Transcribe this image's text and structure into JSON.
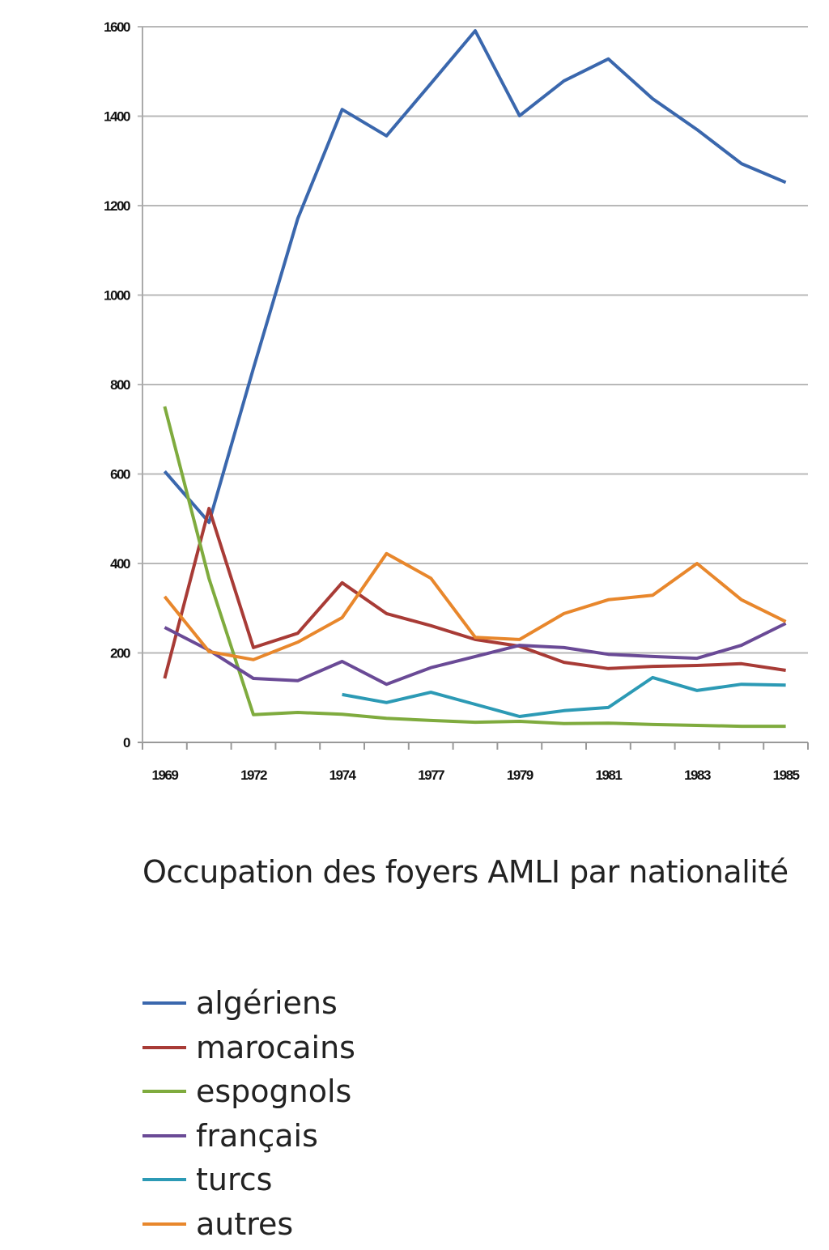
{
  "chart_data": {
    "type": "line",
    "title": "Occupation des foyers AMLI par nationalité",
    "categories": [
      "1969",
      "",
      "1972",
      "",
      "1974",
      "",
      "1977",
      "",
      "1979",
      "",
      "1981",
      "",
      "1983",
      "",
      "1985"
    ],
    "ylim": [
      0,
      1600
    ],
    "yticks": [
      "0",
      "200",
      "400",
      "600",
      "800",
      "1000",
      "1200",
      "1400",
      "1600"
    ],
    "grid": true,
    "legend_placement": "bottom",
    "series": [
      {
        "name": "algériens",
        "color": "#3a67ad",
        "values": [
          606,
          492,
          836,
          1171,
          1415,
          1356,
          1473,
          1591,
          1401,
          1479,
          1528,
          1439,
          1370,
          1294,
          1252
        ]
      },
      {
        "name": "marocains",
        "color": "#a83b36",
        "values": [
          143,
          523,
          212,
          244,
          357,
          288,
          261,
          230,
          215,
          179,
          165,
          170,
          172,
          176,
          161
        ]
      },
      {
        "name": "espognols",
        "color": "#7fab3e",
        "values": [
          751,
          366,
          62,
          67,
          63,
          54,
          49,
          45,
          47,
          42,
          43,
          40,
          38,
          36,
          36
        ]
      },
      {
        "name": "français",
        "color": "#6a4a96",
        "values": [
          257,
          206,
          143,
          138,
          181,
          130,
          167,
          192,
          217,
          212,
          197,
          192,
          188,
          217,
          266
        ]
      },
      {
        "name": "turcs",
        "color": "#2c9ab5",
        "values": [
          null,
          null,
          null,
          null,
          107,
          89,
          112,
          85,
          58,
          71,
          78,
          145,
          116,
          130,
          128
        ]
      },
      {
        "name": "autres",
        "color": "#e8872c",
        "values": [
          326,
          203,
          185,
          224,
          279,
          422,
          367,
          235,
          230,
          288,
          319,
          329,
          400,
          319,
          270
        ]
      }
    ]
  }
}
